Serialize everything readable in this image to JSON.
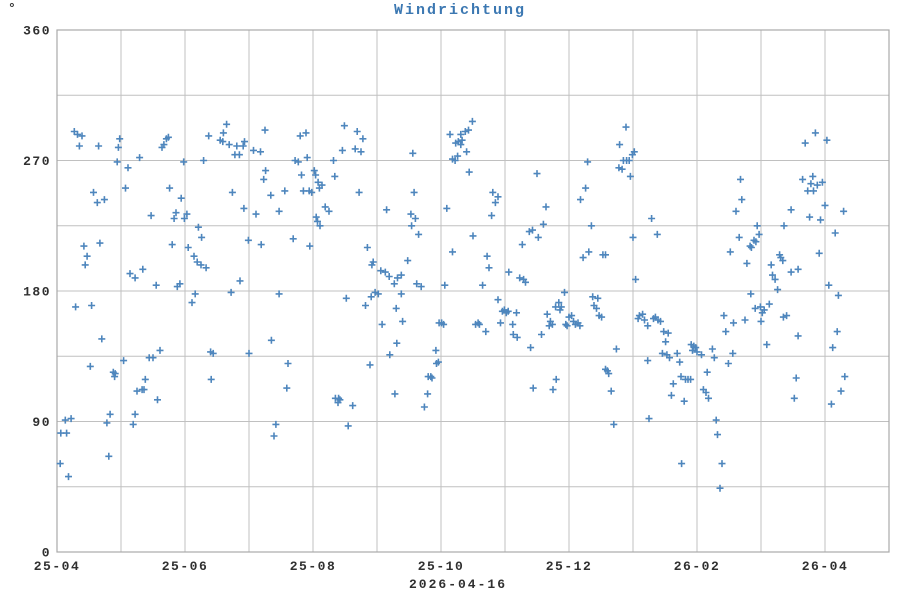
{
  "chart_data": {
    "type": "scatter",
    "title": "Windrichtung",
    "xlabel": "2026-04-16",
    "y_unit_label": "°",
    "ylim": [
      0,
      360
    ],
    "y_major_ticks": [
      0,
      90,
      180,
      270,
      360
    ],
    "y_minor_tick_step": 45,
    "x_tick_labels": [
      "25-04",
      "25-06",
      "25-08",
      "25-10",
      "25-12",
      "26-02",
      "26-04"
    ],
    "x_tick_units": [
      0,
      2,
      4,
      6,
      8,
      10,
      12
    ],
    "x_axis_range_units": [
      0,
      13
    ],
    "x_encoding": "gridline units along time axis; unit 0 = tick '25-04', labels fall on every second gridline",
    "grid": true,
    "legend": "none",
    "marker": "plus",
    "colors": {
      "marker": "#4e86bd",
      "title": "#3c78b2",
      "text": "#303030",
      "grid": "#c0c0c0",
      "frame": "#a9a9a9",
      "background": "#ffffff"
    },
    "points": [
      [
        0.05,
        61
      ],
      [
        0.06,
        82
      ],
      [
        0.13,
        91
      ],
      [
        0.15,
        82
      ],
      [
        0.18,
        52
      ],
      [
        0.22,
        92
      ],
      [
        0.27,
        290
      ],
      [
        0.29,
        169
      ],
      [
        0.32,
        288
      ],
      [
        0.35,
        280
      ],
      [
        0.39,
        287
      ],
      [
        0.42,
        211
      ],
      [
        0.44,
        198
      ],
      [
        0.47,
        204
      ],
      [
        0.52,
        128
      ],
      [
        0.54,
        170
      ],
      [
        0.57,
        248
      ],
      [
        0.63,
        241
      ],
      [
        0.65,
        280
      ],
      [
        0.67,
        213
      ],
      [
        0.7,
        147
      ],
      [
        0.74,
        243
      ],
      [
        0.78,
        89
      ],
      [
        0.81,
        66
      ],
      [
        0.83,
        95
      ],
      [
        0.88,
        124
      ],
      [
        0.9,
        121
      ],
      [
        0.91,
        123
      ],
      [
        0.94,
        269
      ],
      [
        0.96,
        279
      ],
      [
        0.98,
        285
      ],
      [
        1.04,
        132
      ],
      [
        1.07,
        251
      ],
      [
        1.11,
        265
      ],
      [
        1.14,
        192
      ],
      [
        1.19,
        88
      ],
      [
        1.22,
        95
      ],
      [
        1.22,
        189
      ],
      [
        1.25,
        111
      ],
      [
        1.29,
        272
      ],
      [
        1.33,
        112
      ],
      [
        1.34,
        195
      ],
      [
        1.36,
        112
      ],
      [
        1.38,
        119
      ],
      [
        1.44,
        134
      ],
      [
        1.47,
        232
      ],
      [
        1.5,
        134
      ],
      [
        1.55,
        184
      ],
      [
        1.57,
        105
      ],
      [
        1.61,
        139
      ],
      [
        1.64,
        279
      ],
      [
        1.67,
        281
      ],
      [
        1.71,
        285
      ],
      [
        1.74,
        286
      ],
      [
        1.76,
        251
      ],
      [
        1.8,
        212
      ],
      [
        1.83,
        230
      ],
      [
        1.86,
        234
      ],
      [
        1.88,
        183
      ],
      [
        1.92,
        185
      ],
      [
        1.94,
        244
      ],
      [
        1.98,
        269
      ],
      [
        1.99,
        230
      ],
      [
        2.03,
        233
      ],
      [
        2.05,
        210
      ],
      [
        2.11,
        172
      ],
      [
        2.14,
        204
      ],
      [
        2.16,
        178
      ],
      [
        2.19,
        200
      ],
      [
        2.21,
        224
      ],
      [
        2.25,
        198
      ],
      [
        2.26,
        217
      ],
      [
        2.29,
        270
      ],
      [
        2.33,
        196
      ],
      [
        2.37,
        287
      ],
      [
        2.4,
        138
      ],
      [
        2.41,
        119
      ],
      [
        2.44,
        137
      ],
      [
        2.55,
        284
      ],
      [
        2.59,
        283
      ],
      [
        2.6,
        289
      ],
      [
        2.65,
        295
      ],
      [
        2.69,
        281
      ],
      [
        2.72,
        179
      ],
      [
        2.74,
        248
      ],
      [
        2.78,
        274
      ],
      [
        2.81,
        280
      ],
      [
        2.85,
        274
      ],
      [
        2.86,
        187
      ],
      [
        2.91,
        280
      ],
      [
        2.92,
        237
      ],
      [
        2.93,
        283
      ],
      [
        2.99,
        215
      ],
      [
        3.0,
        137
      ],
      [
        3.07,
        277
      ],
      [
        3.11,
        233
      ],
      [
        3.18,
        276
      ],
      [
        3.19,
        212
      ],
      [
        3.23,
        257
      ],
      [
        3.25,
        291
      ],
      [
        3.26,
        263
      ],
      [
        3.34,
        246
      ],
      [
        3.35,
        146
      ],
      [
        3.39,
        80
      ],
      [
        3.42,
        88
      ],
      [
        3.47,
        235
      ],
      [
        3.47,
        178
      ],
      [
        3.56,
        249
      ],
      [
        3.59,
        113
      ],
      [
        3.61,
        130
      ],
      [
        3.69,
        216
      ],
      [
        3.72,
        270
      ],
      [
        3.77,
        269
      ],
      [
        3.8,
        287
      ],
      [
        3.82,
        260
      ],
      [
        3.85,
        249
      ],
      [
        3.89,
        289
      ],
      [
        3.91,
        272
      ],
      [
        3.94,
        249
      ],
      [
        3.95,
        211
      ],
      [
        3.98,
        248
      ],
      [
        4.02,
        263
      ],
      [
        4.04,
        260
      ],
      [
        4.05,
        231
      ],
      [
        4.07,
        228
      ],
      [
        4.08,
        255
      ],
      [
        4.1,
        251
      ],
      [
        4.11,
        225
      ],
      [
        4.14,
        253
      ],
      [
        4.19,
        238
      ],
      [
        4.25,
        235
      ],
      [
        4.32,
        270
      ],
      [
        4.34,
        259
      ],
      [
        4.35,
        106
      ],
      [
        4.39,
        103
      ],
      [
        4.4,
        106
      ],
      [
        4.42,
        105
      ],
      [
        4.46,
        277
      ],
      [
        4.49,
        294
      ],
      [
        4.52,
        175
      ],
      [
        4.55,
        87
      ],
      [
        4.62,
        101
      ],
      [
        4.66,
        278
      ],
      [
        4.69,
        290
      ],
      [
        4.72,
        248
      ],
      [
        4.75,
        276
      ],
      [
        4.78,
        285
      ],
      [
        4.82,
        170
      ],
      [
        4.85,
        210
      ],
      [
        4.89,
        129
      ],
      [
        4.91,
        176
      ],
      [
        4.92,
        198
      ],
      [
        4.94,
        200
      ],
      [
        4.97,
        179
      ],
      [
        5.02,
        178
      ],
      [
        5.06,
        194
      ],
      [
        5.08,
        157
      ],
      [
        5.13,
        193
      ],
      [
        5.15,
        236
      ],
      [
        5.19,
        190
      ],
      [
        5.2,
        136
      ],
      [
        5.27,
        185
      ],
      [
        5.28,
        109
      ],
      [
        5.3,
        168
      ],
      [
        5.31,
        144
      ],
      [
        5.32,
        189
      ],
      [
        5.38,
        191
      ],
      [
        5.38,
        178
      ],
      [
        5.4,
        159
      ],
      [
        5.48,
        201
      ],
      [
        5.53,
        233
      ],
      [
        5.54,
        225
      ],
      [
        5.56,
        275
      ],
      [
        5.58,
        248
      ],
      [
        5.6,
        230
      ],
      [
        5.62,
        185
      ],
      [
        5.65,
        219
      ],
      [
        5.69,
        183
      ],
      [
        5.74,
        100
      ],
      [
        5.79,
        109
      ],
      [
        5.8,
        121
      ],
      [
        5.84,
        121
      ],
      [
        5.86,
        120
      ],
      [
        5.92,
        139
      ],
      [
        5.93,
        130
      ],
      [
        5.96,
        131
      ],
      [
        5.97,
        158
      ],
      [
        6.01,
        158
      ],
      [
        6.04,
        157
      ],
      [
        6.06,
        184
      ],
      [
        6.09,
        237
      ],
      [
        6.14,
        288
      ],
      [
        6.18,
        271
      ],
      [
        6.18,
        207
      ],
      [
        6.22,
        270
      ],
      [
        6.23,
        282
      ],
      [
        6.26,
        273
      ],
      [
        6.27,
        283
      ],
      [
        6.31,
        288
      ],
      [
        6.31,
        281
      ],
      [
        6.33,
        284
      ],
      [
        6.38,
        290
      ],
      [
        6.4,
        276
      ],
      [
        6.43,
        291
      ],
      [
        6.44,
        262
      ],
      [
        6.49,
        297
      ],
      [
        6.5,
        218
      ],
      [
        6.54,
        157
      ],
      [
        6.58,
        158
      ],
      [
        6.6,
        157
      ],
      [
        6.65,
        184
      ],
      [
        6.7,
        152
      ],
      [
        6.72,
        204
      ],
      [
        6.75,
        196
      ],
      [
        6.79,
        232
      ],
      [
        6.81,
        248
      ],
      [
        6.85,
        241
      ],
      [
        6.89,
        245
      ],
      [
        6.89,
        174
      ],
      [
        6.93,
        158
      ],
      [
        6.96,
        166
      ],
      [
        6.99,
        167
      ],
      [
        7.02,
        165
      ],
      [
        7.05,
        166
      ],
      [
        7.06,
        193
      ],
      [
        7.12,
        157
      ],
      [
        7.13,
        150
      ],
      [
        7.18,
        165
      ],
      [
        7.19,
        148
      ],
      [
        7.23,
        189
      ],
      [
        7.27,
        212
      ],
      [
        7.29,
        188
      ],
      [
        7.32,
        186
      ],
      [
        7.38,
        221
      ],
      [
        7.4,
        141
      ],
      [
        7.43,
        222
      ],
      [
        7.44,
        113
      ],
      [
        7.5,
        261
      ],
      [
        7.52,
        217
      ],
      [
        7.57,
        150
      ],
      [
        7.6,
        226
      ],
      [
        7.64,
        238
      ],
      [
        7.66,
        164
      ],
      [
        7.69,
        156
      ],
      [
        7.71,
        159
      ],
      [
        7.74,
        157
      ],
      [
        7.75,
        112
      ],
      [
        7.79,
        169
      ],
      [
        7.8,
        119
      ],
      [
        7.84,
        172
      ],
      [
        7.86,
        167
      ],
      [
        7.88,
        169
      ],
      [
        7.93,
        179
      ],
      [
        7.95,
        157
      ],
      [
        7.97,
        156
      ],
      [
        8.0,
        162
      ],
      [
        8.04,
        163
      ],
      [
        8.07,
        159
      ],
      [
        8.1,
        157
      ],
      [
        8.14,
        158
      ],
      [
        8.17,
        156
      ],
      [
        8.18,
        243
      ],
      [
        8.22,
        203
      ],
      [
        8.26,
        251
      ],
      [
        8.29,
        269
      ],
      [
        8.31,
        207
      ],
      [
        8.35,
        225
      ],
      [
        8.37,
        176
      ],
      [
        8.39,
        170
      ],
      [
        8.43,
        168
      ],
      [
        8.45,
        175
      ],
      [
        8.47,
        163
      ],
      [
        8.51,
        162
      ],
      [
        8.53,
        205
      ],
      [
        8.57,
        205
      ],
      [
        8.57,
        126
      ],
      [
        8.6,
        125
      ],
      [
        8.62,
        123
      ],
      [
        8.66,
        111
      ],
      [
        8.7,
        88
      ],
      [
        8.74,
        140
      ],
      [
        8.78,
        265
      ],
      [
        8.79,
        281
      ],
      [
        8.83,
        264
      ],
      [
        8.85,
        270
      ],
      [
        8.89,
        293
      ],
      [
        8.9,
        270
      ],
      [
        8.94,
        270
      ],
      [
        8.96,
        259
      ],
      [
        8.99,
        274
      ],
      [
        9.0,
        217
      ],
      [
        9.02,
        276
      ],
      [
        9.04,
        188
      ],
      [
        9.08,
        161
      ],
      [
        9.1,
        163
      ],
      [
        9.15,
        164
      ],
      [
        9.18,
        160
      ],
      [
        9.23,
        156
      ],
      [
        9.23,
        132
      ],
      [
        9.25,
        92
      ],
      [
        9.29,
        230
      ],
      [
        9.32,
        161
      ],
      [
        9.35,
        162
      ],
      [
        9.38,
        219
      ],
      [
        9.39,
        160
      ],
      [
        9.43,
        159
      ],
      [
        9.46,
        137
      ],
      [
        9.48,
        152
      ],
      [
        9.51,
        145
      ],
      [
        9.53,
        136
      ],
      [
        9.55,
        151
      ],
      [
        9.57,
        134
      ],
      [
        9.6,
        108
      ],
      [
        9.63,
        116
      ],
      [
        9.69,
        137
      ],
      [
        9.73,
        131
      ],
      [
        9.75,
        121
      ],
      [
        9.76,
        61
      ],
      [
        9.8,
        104
      ],
      [
        9.82,
        119
      ],
      [
        9.86,
        119
      ],
      [
        9.9,
        119
      ],
      [
        9.91,
        143
      ],
      [
        9.93,
        139
      ],
      [
        9.95,
        142
      ],
      [
        9.98,
        141
      ],
      [
        10.0,
        138
      ],
      [
        10.07,
        136
      ],
      [
        10.1,
        112
      ],
      [
        10.14,
        110
      ],
      [
        10.16,
        124
      ],
      [
        10.18,
        106
      ],
      [
        10.24,
        140
      ],
      [
        10.27,
        134
      ],
      [
        10.3,
        91
      ],
      [
        10.32,
        81
      ],
      [
        10.36,
        44
      ],
      [
        10.39,
        61
      ],
      [
        10.42,
        163
      ],
      [
        10.45,
        152
      ],
      [
        10.49,
        130
      ],
      [
        10.52,
        207
      ],
      [
        10.56,
        137
      ],
      [
        10.57,
        158
      ],
      [
        10.61,
        235
      ],
      [
        10.66,
        217
      ],
      [
        10.68,
        257
      ],
      [
        10.7,
        243
      ],
      [
        10.75,
        160
      ],
      [
        10.78,
        199
      ],
      [
        10.83,
        211
      ],
      [
        10.84,
        178
      ],
      [
        10.85,
        210
      ],
      [
        10.89,
        215
      ],
      [
        10.91,
        168
      ],
      [
        10.92,
        214
      ],
      [
        10.94,
        225
      ],
      [
        10.97,
        219
      ],
      [
        10.99,
        169
      ],
      [
        11.0,
        159
      ],
      [
        11.02,
        165
      ],
      [
        11.05,
        167
      ],
      [
        11.09,
        143
      ],
      [
        11.13,
        171
      ],
      [
        11.16,
        198
      ],
      [
        11.18,
        191
      ],
      [
        11.22,
        188
      ],
      [
        11.26,
        181
      ],
      [
        11.29,
        205
      ],
      [
        11.31,
        203
      ],
      [
        11.34,
        201
      ],
      [
        11.35,
        162
      ],
      [
        11.36,
        225
      ],
      [
        11.4,
        163
      ],
      [
        11.47,
        193
      ],
      [
        11.47,
        236
      ],
      [
        11.52,
        106
      ],
      [
        11.55,
        120
      ],
      [
        11.58,
        195
      ],
      [
        11.58,
        149
      ],
      [
        11.65,
        257
      ],
      [
        11.69,
        282
      ],
      [
        11.73,
        249
      ],
      [
        11.76,
        231
      ],
      [
        11.78,
        254
      ],
      [
        11.81,
        259
      ],
      [
        11.82,
        249
      ],
      [
        11.85,
        289
      ],
      [
        11.88,
        253
      ],
      [
        11.91,
        206
      ],
      [
        11.93,
        229
      ],
      [
        11.96,
        255
      ],
      [
        12.0,
        239
      ],
      [
        12.03,
        284
      ],
      [
        12.06,
        184
      ],
      [
        12.1,
        102
      ],
      [
        12.12,
        141
      ],
      [
        12.16,
        220
      ],
      [
        12.19,
        152
      ],
      [
        12.21,
        177
      ],
      [
        12.25,
        111
      ],
      [
        12.29,
        235
      ],
      [
        12.31,
        121
      ]
    ]
  }
}
